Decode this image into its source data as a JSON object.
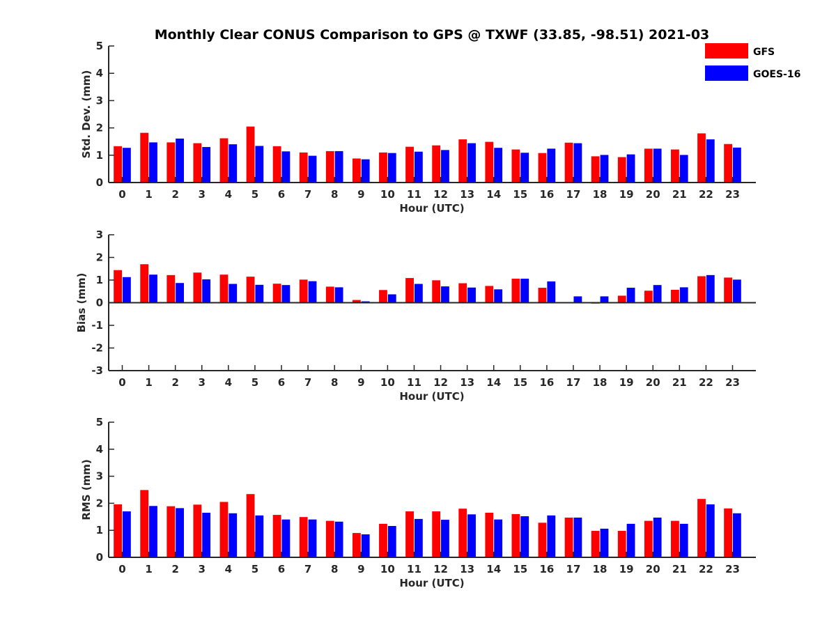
{
  "chart_data": {
    "title": "Monthly Clear CONUS Comparison to GPS @ TXWF (33.85, -98.51) 2021-03",
    "series_names": [
      "GFS",
      "GOES-16"
    ],
    "colors": {
      "GFS": "#ff0000",
      "GOES-16": "#0000ff"
    },
    "legend_position": "top-right",
    "panels": [
      {
        "type": "bar",
        "xlabel": "Hour (UTC)",
        "ylabel": "Std. Dev. (mm)",
        "ylim": [
          0,
          5
        ],
        "yticks": [
          0,
          1,
          2,
          3,
          4,
          5
        ],
        "categories": [
          "0",
          "1",
          "2",
          "3",
          "4",
          "5",
          "6",
          "7",
          "8",
          "9",
          "10",
          "11",
          "12",
          "13",
          "14",
          "15",
          "16",
          "17",
          "18",
          "19",
          "20",
          "21",
          "22",
          "23"
        ],
        "series": [
          {
            "name": "GFS",
            "values": [
              1.33,
              1.82,
              1.47,
              1.44,
              1.62,
              2.05,
              1.33,
              1.1,
              1.15,
              0.88,
              1.1,
              1.31,
              1.36,
              1.58,
              1.49,
              1.21,
              1.08,
              1.46,
              0.96,
              0.93,
              1.24,
              1.21,
              1.8,
              1.41
            ]
          },
          {
            "name": "GOES-16",
            "values": [
              1.27,
              1.47,
              1.61,
              1.3,
              1.4,
              1.34,
              1.14,
              0.98,
              1.15,
              0.85,
              1.08,
              1.13,
              1.19,
              1.44,
              1.27,
              1.09,
              1.24,
              1.44,
              1.01,
              1.03,
              1.24,
              1.01,
              1.58,
              1.28
            ]
          }
        ]
      },
      {
        "type": "bar",
        "xlabel": "Hour (UTC)",
        "ylabel": "Bias (mm)",
        "ylim": [
          -3,
          3
        ],
        "yticks": [
          -3,
          -2,
          -1,
          0,
          1,
          2,
          3
        ],
        "categories": [
          "0",
          "1",
          "2",
          "3",
          "4",
          "5",
          "6",
          "7",
          "8",
          "9",
          "10",
          "11",
          "12",
          "13",
          "14",
          "15",
          "16",
          "17",
          "18",
          "19",
          "20",
          "21",
          "22",
          "23"
        ],
        "series": [
          {
            "name": "GFS",
            "values": [
              1.44,
              1.7,
              1.22,
              1.33,
              1.24,
              1.15,
              0.84,
              1.02,
              0.71,
              0.12,
              0.56,
              1.09,
              0.99,
              0.86,
              0.74,
              1.06,
              0.66,
              -0.03,
              -0.04,
              0.31,
              0.53,
              0.57,
              1.17,
              1.11
            ]
          },
          {
            "name": "GOES-16",
            "values": [
              1.13,
              1.24,
              0.87,
              1.03,
              0.83,
              0.79,
              0.78,
              0.95,
              0.68,
              0.06,
              0.37,
              0.83,
              0.72,
              0.67,
              0.59,
              1.06,
              0.94,
              0.28,
              0.28,
              0.66,
              0.78,
              0.68,
              1.22,
              1.02
            ]
          }
        ]
      },
      {
        "type": "bar",
        "xlabel": "Hour (UTC)",
        "ylabel": "RMS (mm)",
        "ylim": [
          0,
          5
        ],
        "yticks": [
          0,
          1,
          2,
          3,
          4,
          5
        ],
        "categories": [
          "0",
          "1",
          "2",
          "3",
          "4",
          "5",
          "6",
          "7",
          "8",
          "9",
          "10",
          "11",
          "12",
          "13",
          "14",
          "15",
          "16",
          "17",
          "18",
          "19",
          "20",
          "21",
          "22",
          "23"
        ],
        "series": [
          {
            "name": "GFS",
            "values": [
              1.96,
              2.49,
              1.89,
              1.95,
              2.05,
              2.34,
              1.57,
              1.49,
              1.35,
              0.9,
              1.24,
              1.7,
              1.7,
              1.8,
              1.65,
              1.6,
              1.28,
              1.47,
              0.98,
              0.98,
              1.35,
              1.35,
              2.16,
              1.81
            ]
          },
          {
            "name": "GOES-16",
            "values": [
              1.7,
              1.9,
              1.82,
              1.65,
              1.63,
              1.55,
              1.4,
              1.4,
              1.32,
              0.85,
              1.16,
              1.42,
              1.39,
              1.59,
              1.4,
              1.52,
              1.55,
              1.47,
              1.06,
              1.24,
              1.47,
              1.24,
              1.96,
              1.63
            ]
          }
        ]
      }
    ]
  }
}
